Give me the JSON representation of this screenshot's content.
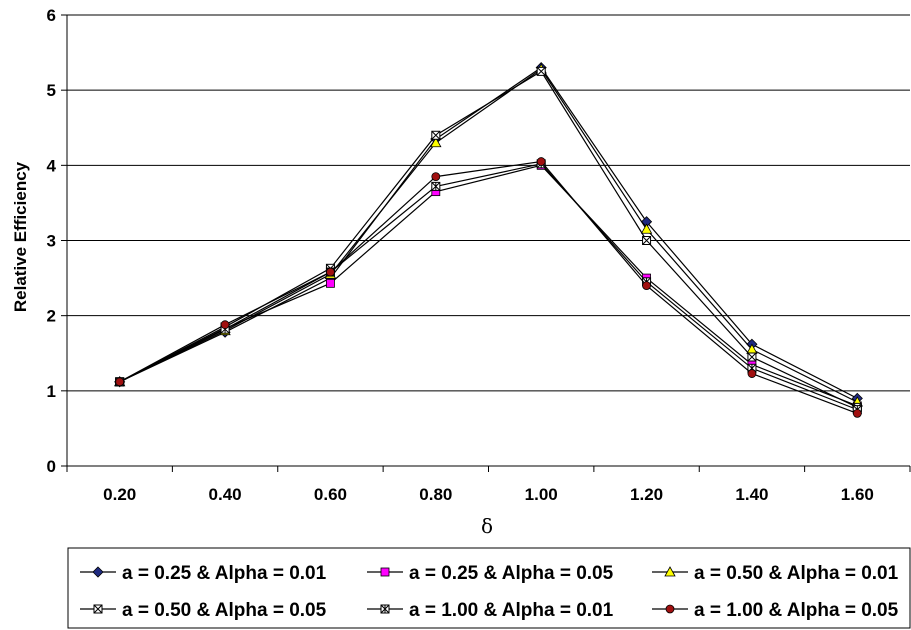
{
  "chart_data": {
    "type": "line",
    "title": "",
    "xlabel": "δ",
    "ylabel": "Relative  Efficiency",
    "categories": [
      "0.20",
      "0.40",
      "0.60",
      "0.80",
      "1.00",
      "1.20",
      "1.40",
      "1.60"
    ],
    "yticks": [
      "0",
      "1",
      "2",
      "3",
      "4",
      "5",
      "6"
    ],
    "ylim": [
      0,
      6
    ],
    "grid": true,
    "legend_position": "bottom",
    "series": [
      {
        "name": "a = 0.25 & Alpha = 0.01",
        "marker": "diamond",
        "color": "#1f2a80",
        "values": [
          1.12,
          1.78,
          2.5,
          4.35,
          5.3,
          3.25,
          1.62,
          0.9
        ]
      },
      {
        "name": "a = 0.25 & Alpha = 0.05",
        "marker": "square",
        "color": "#ff00ff",
        "values": [
          1.12,
          1.83,
          2.43,
          3.65,
          4.0,
          2.5,
          1.35,
          0.8
        ]
      },
      {
        "name": "a = 0.50 & Alpha = 0.01",
        "marker": "triangle",
        "color": "#ffff00",
        "values": [
          1.12,
          1.8,
          2.55,
          4.3,
          5.28,
          3.15,
          1.55,
          0.85
        ]
      },
      {
        "name": "a = 0.50 & Alpha = 0.05",
        "marker": "xsquare",
        "color": "#ffffff",
        "values": [
          1.12,
          1.85,
          2.63,
          4.4,
          5.25,
          3.0,
          1.45,
          0.78
        ]
      },
      {
        "name": "a = 1.00 & Alpha = 0.01",
        "marker": "stsquare",
        "color": "#ffffff",
        "values": [
          1.12,
          1.82,
          2.58,
          3.72,
          4.02,
          2.45,
          1.3,
          0.75
        ]
      },
      {
        "name": "a = 1.00 & Alpha = 0.05",
        "marker": "circle",
        "color": "#a01010",
        "values": [
          1.12,
          1.88,
          2.58,
          3.85,
          4.05,
          2.4,
          1.23,
          0.7
        ]
      }
    ]
  }
}
